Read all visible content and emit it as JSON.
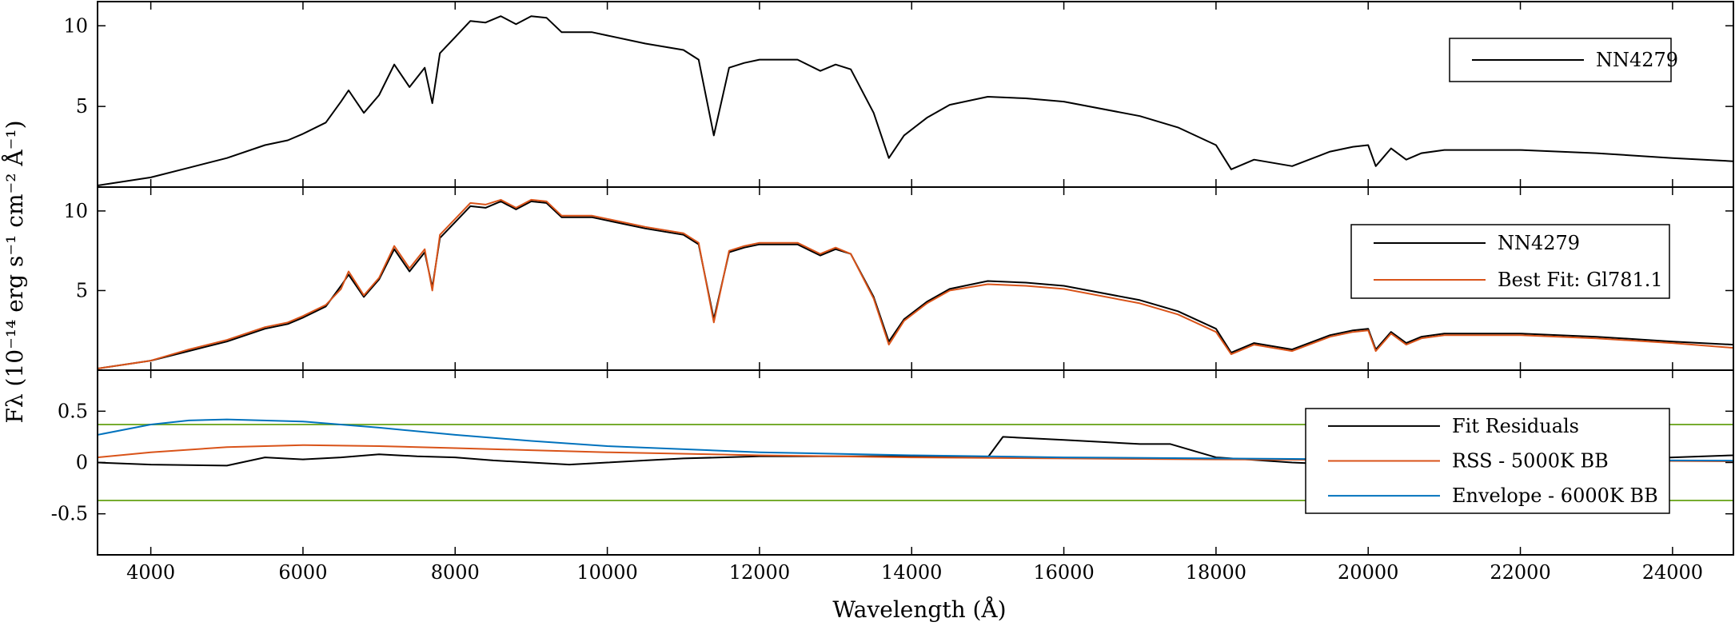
{
  "chart_data": {
    "type": "line",
    "xlabel": "Wavelength (Å)",
    "ylabel": "Fλ (10⁻¹⁴ erg s⁻¹ cm⁻² Å⁻¹)",
    "xlim": [
      3300,
      24800
    ],
    "xticks": [
      4000,
      6000,
      8000,
      10000,
      12000,
      14000,
      16000,
      18000,
      20000,
      22000,
      24000
    ],
    "panels": [
      {
        "name": "top",
        "ylim": [
          0,
          11.5
        ],
        "yticks": [
          5,
          10
        ],
        "legend": {
          "placement": "top-right",
          "entries": [
            {
              "label": "NN4279",
              "color": "#000000"
            }
          ]
        },
        "series": [
          {
            "name": "NN4279",
            "color": "#000000",
            "x": [
              3300,
              4000,
              4500,
              5000,
              5500,
              5800,
              6000,
              6300,
              6500,
              6600,
              6800,
              7000,
              7200,
              7400,
              7600,
              7700,
              7800,
              8000,
              8200,
              8400,
              8600,
              8800,
              9000,
              9200,
              9400,
              9600,
              9800,
              10000,
              10500,
              11000,
              11200,
              11400,
              11600,
              11800,
              12000,
              12500,
              12800,
              13000,
              13200,
              13500,
              13700,
              13900,
              14200,
              14500,
              15000,
              15500,
              16000,
              17000,
              17500,
              18000,
              18200,
              18500,
              19000,
              19500,
              19800,
              20000,
              20100,
              20300,
              20500,
              20700,
              21000,
              22000,
              23000,
              24000,
              24800
            ],
            "y": [
              0.1,
              0.6,
              1.2,
              1.8,
              2.6,
              2.9,
              3.3,
              4.0,
              5.3,
              6.0,
              4.6,
              5.7,
              7.6,
              6.2,
              7.4,
              5.2,
              8.3,
              9.3,
              10.3,
              10.2,
              10.6,
              10.1,
              10.6,
              10.5,
              9.6,
              9.6,
              9.6,
              9.4,
              8.9,
              8.5,
              7.9,
              3.2,
              7.4,
              7.7,
              7.9,
              7.9,
              7.2,
              7.6,
              7.3,
              4.6,
              1.8,
              3.2,
              4.3,
              5.1,
              5.6,
              5.5,
              5.3,
              4.4,
              3.7,
              2.6,
              1.1,
              1.7,
              1.3,
              2.2,
              2.5,
              2.6,
              1.3,
              2.4,
              1.7,
              2.1,
              2.3,
              2.3,
              2.1,
              1.8,
              1.6
            ]
          }
        ]
      },
      {
        "name": "middle",
        "ylim": [
          0,
          11.5
        ],
        "yticks": [
          5,
          10
        ],
        "legend": {
          "placement": "top-right",
          "entries": [
            {
              "label": "NN4279",
              "color": "#000000"
            },
            {
              "label": "Best Fit: Gl781.1",
              "color": "#d95319"
            }
          ]
        },
        "series": [
          {
            "name": "NN4279",
            "color": "#000000",
            "x": [
              3300,
              4000,
              4500,
              5000,
              5500,
              5800,
              6000,
              6300,
              6500,
              6600,
              6800,
              7000,
              7200,
              7400,
              7600,
              7700,
              7800,
              8000,
              8200,
              8400,
              8600,
              8800,
              9000,
              9200,
              9400,
              9600,
              9800,
              10000,
              10500,
              11000,
              11200,
              11400,
              11600,
              11800,
              12000,
              12500,
              12800,
              13000,
              13200,
              13500,
              13700,
              13900,
              14200,
              14500,
              15000,
              15500,
              16000,
              17000,
              17500,
              18000,
              18200,
              18500,
              19000,
              19500,
              19800,
              20000,
              20100,
              20300,
              20500,
              20700,
              21000,
              22000,
              23000,
              24000,
              24800
            ],
            "y": [
              0.1,
              0.6,
              1.2,
              1.8,
              2.6,
              2.9,
              3.3,
              4.0,
              5.3,
              6.0,
              4.6,
              5.7,
              7.6,
              6.2,
              7.4,
              5.2,
              8.3,
              9.3,
              10.3,
              10.2,
              10.6,
              10.1,
              10.6,
              10.5,
              9.6,
              9.6,
              9.6,
              9.4,
              8.9,
              8.5,
              7.9,
              3.2,
              7.4,
              7.7,
              7.9,
              7.9,
              7.2,
              7.6,
              7.3,
              4.6,
              1.8,
              3.2,
              4.3,
              5.1,
              5.6,
              5.5,
              5.3,
              4.4,
              3.7,
              2.6,
              1.1,
              1.7,
              1.3,
              2.2,
              2.5,
              2.6,
              1.3,
              2.4,
              1.7,
              2.1,
              2.3,
              2.3,
              2.1,
              1.8,
              1.6
            ]
          },
          {
            "name": "Best Fit: Gl781.1",
            "color": "#d95319",
            "x": [
              3300,
              4000,
              4500,
              5000,
              5500,
              5800,
              6000,
              6300,
              6500,
              6600,
              6800,
              7000,
              7200,
              7400,
              7600,
              7700,
              7800,
              8000,
              8200,
              8400,
              8600,
              8800,
              9000,
              9200,
              9400,
              9600,
              9800,
              10000,
              10500,
              11000,
              11200,
              11400,
              11600,
              11800,
              12000,
              12500,
              12800,
              13000,
              13200,
              13500,
              13700,
              13900,
              14200,
              14500,
              15000,
              15500,
              16000,
              17000,
              17500,
              18000,
              18200,
              18500,
              19000,
              19500,
              19800,
              20000,
              20100,
              20300,
              20500,
              20700,
              21000,
              22000,
              23000,
              24000,
              24800
            ],
            "y": [
              0.1,
              0.6,
              1.3,
              1.9,
              2.7,
              3.0,
              3.4,
              4.1,
              5.1,
              6.2,
              4.7,
              5.8,
              7.8,
              6.4,
              7.6,
              5.0,
              8.5,
              9.5,
              10.5,
              10.4,
              10.7,
              10.2,
              10.7,
              10.6,
              9.7,
              9.7,
              9.7,
              9.5,
              9.0,
              8.6,
              8.0,
              3.0,
              7.5,
              7.8,
              8.0,
              8.0,
              7.3,
              7.7,
              7.3,
              4.5,
              1.6,
              3.1,
              4.2,
              5.0,
              5.4,
              5.3,
              5.1,
              4.2,
              3.5,
              2.4,
              1.0,
              1.6,
              1.2,
              2.1,
              2.4,
              2.5,
              1.2,
              2.3,
              1.6,
              2.0,
              2.2,
              2.2,
              2.0,
              1.7,
              1.4
            ]
          }
        ]
      },
      {
        "name": "bottom",
        "ylim": [
          -0.9,
          0.9
        ],
        "yticks": [
          -0.5,
          0,
          0.5
        ],
        "yticklabels": [
          "-0.5",
          "0",
          "0.5"
        ],
        "legend": {
          "placement": "right",
          "entries": [
            {
              "label": "Fit Residuals",
              "color": "#000000"
            },
            {
              "label": "RSS - 5000K BB",
              "color": "#d95319"
            },
            {
              "label": "Envelope - 6000K BB",
              "color": "#0072bd"
            }
          ]
        },
        "hlines": [
          {
            "y": 0.37,
            "color": "#77ac30"
          },
          {
            "y": -0.37,
            "color": "#77ac30"
          }
        ],
        "series": [
          {
            "name": "Fit Residuals",
            "color": "#000000",
            "x": [
              3300,
              4000,
              5000,
              5500,
              6000,
              6500,
              7000,
              7500,
              8000,
              8500,
              9000,
              9500,
              10000,
              10500,
              11000,
              12000,
              13000,
              14000,
              15000,
              15200,
              16000,
              17000,
              17400,
              18000,
              19000,
              20000,
              21000,
              22000,
              23000,
              24000,
              24800
            ],
            "y": [
              0.0,
              -0.02,
              -0.03,
              0.05,
              0.03,
              0.05,
              0.08,
              0.06,
              0.05,
              0.02,
              0.0,
              -0.02,
              0.0,
              0.02,
              0.04,
              0.06,
              0.06,
              0.06,
              0.05,
              0.25,
              0.22,
              0.18,
              0.18,
              0.05,
              0.0,
              -0.03,
              0.02,
              0.03,
              0.02,
              0.05,
              0.07
            ]
          },
          {
            "name": "RSS - 5000K BB",
            "color": "#d95319",
            "x": [
              3300,
              4000,
              5000,
              6000,
              7000,
              8000,
              9000,
              10000,
              12000,
              14000,
              16000,
              18000,
              20000,
              22000,
              24000,
              24800
            ],
            "y": [
              0.05,
              0.1,
              0.15,
              0.17,
              0.16,
              0.14,
              0.12,
              0.1,
              0.07,
              0.05,
              0.04,
              0.03,
              0.025,
              0.02,
              0.015,
              0.012
            ]
          },
          {
            "name": "Envelope - 6000K BB",
            "color": "#0072bd",
            "x": [
              3300,
              4000,
              4500,
              5000,
              6000,
              7000,
              8000,
              9000,
              10000,
              12000,
              14000,
              16000,
              18000,
              19000,
              20000,
              22000,
              24000,
              24800
            ],
            "y": [
              0.27,
              0.37,
              0.41,
              0.42,
              0.4,
              0.34,
              0.27,
              0.21,
              0.16,
              0.1,
              0.07,
              0.05,
              0.04,
              0.035,
              0.03,
              0.025,
              0.02,
              0.018
            ]
          }
        ]
      }
    ]
  }
}
